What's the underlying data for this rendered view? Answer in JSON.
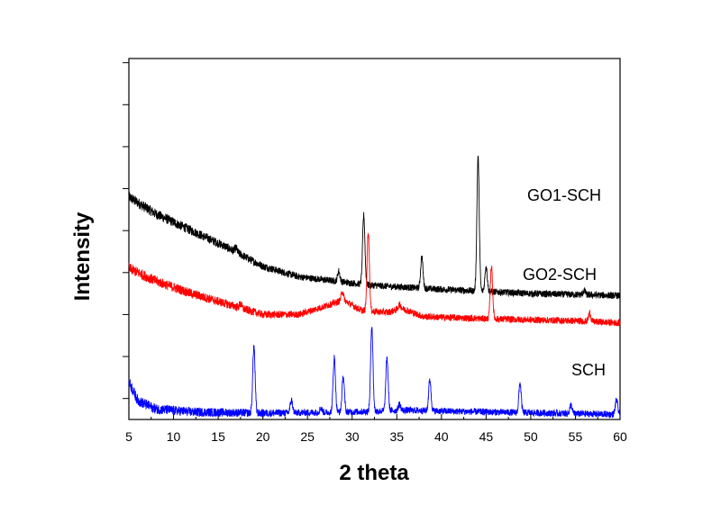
{
  "chart_data": {
    "type": "line",
    "xlabel": "2 theta",
    "ylabel": "Intensity",
    "xlim": [
      5,
      60
    ],
    "x_ticks": [
      "5",
      "10",
      "15",
      "20",
      "25",
      "30",
      "35",
      "40",
      "45",
      "50",
      "55",
      "60"
    ],
    "y_tick_labels_shown": false,
    "grid": false,
    "legend": "none",
    "series": [
      {
        "name": "GO1-SCH",
        "color": "#000000",
        "baseline": [
          [
            5,
            5.3
          ],
          [
            8,
            4.9
          ],
          [
            12,
            4.5
          ],
          [
            16,
            4.1
          ],
          [
            20,
            3.65
          ],
          [
            24,
            3.4
          ],
          [
            28,
            3.3
          ],
          [
            32,
            3.2
          ],
          [
            40,
            3.1
          ],
          [
            50,
            3.0
          ],
          [
            60,
            2.95
          ]
        ],
        "peaks": [
          [
            17,
            0.1
          ],
          [
            28.5,
            0.25
          ],
          [
            31.3,
            1.65
          ],
          [
            37.8,
            0.75
          ],
          [
            44.1,
            3.2
          ],
          [
            45.0,
            0.6
          ],
          [
            56.0,
            0.1
          ]
        ]
      },
      {
        "name": "GO2-SCH",
        "color": "#ff0000",
        "baseline": [
          [
            5,
            3.6
          ],
          [
            8,
            3.3
          ],
          [
            12,
            3.0
          ],
          [
            16,
            2.75
          ],
          [
            20,
            2.5
          ],
          [
            24,
            2.5
          ],
          [
            27,
            2.7
          ],
          [
            29,
            2.85
          ],
          [
            31,
            2.6
          ],
          [
            34,
            2.55
          ],
          [
            35.5,
            2.65
          ],
          [
            38,
            2.45
          ],
          [
            45,
            2.4
          ],
          [
            55,
            2.35
          ],
          [
            60,
            2.3
          ]
        ],
        "peaks": [
          [
            17.5,
            0.1
          ],
          [
            28.9,
            0.2
          ],
          [
            31.8,
            1.9
          ],
          [
            35.3,
            0.1
          ],
          [
            45.6,
            1.25
          ],
          [
            56.6,
            0.2
          ]
        ]
      },
      {
        "name": "SCH",
        "color": "#0000ff",
        "baseline": [
          [
            5,
            0.9
          ],
          [
            6,
            0.45
          ],
          [
            8,
            0.25
          ],
          [
            12,
            0.18
          ],
          [
            20,
            0.15
          ],
          [
            30,
            0.18
          ],
          [
            36,
            0.22
          ],
          [
            40,
            0.2
          ],
          [
            50,
            0.16
          ],
          [
            60,
            0.12
          ]
        ],
        "peaks": [
          [
            19.0,
            1.6
          ],
          [
            23.2,
            0.3
          ],
          [
            26.5,
            0.1
          ],
          [
            28.0,
            1.3
          ],
          [
            29.0,
            0.85
          ],
          [
            32.2,
            2.05
          ],
          [
            33.9,
            1.25
          ],
          [
            35.3,
            0.15
          ],
          [
            38.7,
            0.75
          ],
          [
            48.8,
            0.7
          ],
          [
            54.5,
            0.2
          ],
          [
            59.6,
            0.35
          ]
        ]
      }
    ]
  }
}
